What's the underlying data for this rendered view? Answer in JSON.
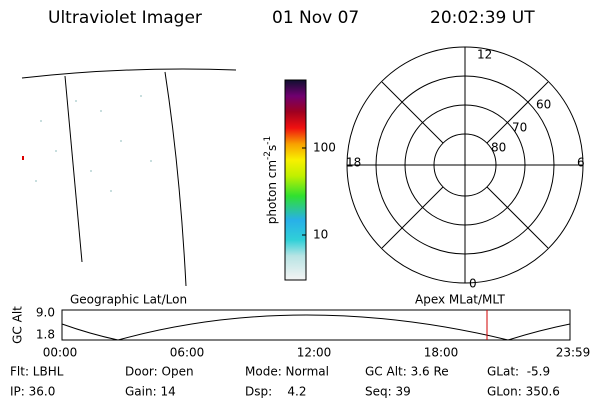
{
  "header": {
    "instrument": "Ultraviolet Imager",
    "date": "01 Nov 07",
    "time": "20:02:39 UT"
  },
  "colorbar": {
    "label_main": "photon cm",
    "exp1": "-2",
    "unit2": "s",
    "exp2": "-1",
    "ticks": [
      "100",
      "10"
    ]
  },
  "polar": {
    "labels": [
      "12",
      "60",
      "70",
      "80",
      "18",
      "6",
      "0"
    ]
  },
  "orbit": {
    "left_title": "Geographic Lat/Lon",
    "right_title": "Apex MLat/MLT",
    "y_label": "GC Alt",
    "y_ticks": [
      "9.0",
      "1.8"
    ],
    "x_ticks": [
      "00:00",
      "06:00",
      "12:00",
      "18:00",
      "23:59"
    ]
  },
  "info": {
    "rows": [
      [
        "Flt: LBHL",
        "Door: Open",
        "Mode: Normal",
        "GC Alt: 3.6 Re",
        "GLat:  -5.9"
      ],
      [
        "IP: 36.0",
        "Gain: 14",
        "Dsp:    4.2",
        "Seq: 39",
        "GLon: 350.6"
      ]
    ]
  }
}
